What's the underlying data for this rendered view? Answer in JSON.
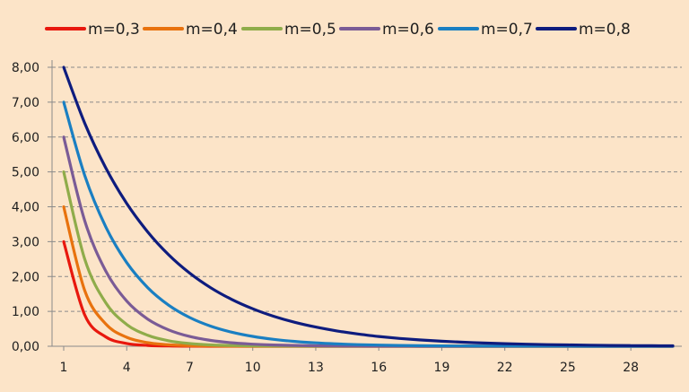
{
  "chart_data": {
    "type": "line",
    "title": "",
    "xlabel": "",
    "ylabel": "",
    "x": [
      1,
      2,
      3,
      4,
      5,
      6,
      7,
      8,
      9,
      10,
      11,
      12,
      13,
      14,
      15,
      16,
      17,
      18,
      19,
      20,
      21,
      22,
      23,
      24,
      25,
      26,
      27,
      28,
      29,
      30
    ],
    "x_tick_labels": [
      "1",
      "4",
      "7",
      "10",
      "13",
      "16",
      "19",
      "22",
      "25",
      "28"
    ],
    "y_tick_labels": [
      "0,00",
      "1,00",
      "2,00",
      "3,00",
      "4,00",
      "5,00",
      "6,00",
      "7,00",
      "8,00"
    ],
    "ylim": [
      0,
      8
    ],
    "xlim": [
      1,
      30
    ],
    "grid": "horizontal-dashed",
    "legend_position": "top",
    "series": [
      {
        "name": "m=0,3",
        "color": "#e8180e",
        "values": [
          3.0,
          0.9,
          0.27,
          0.081,
          0.024,
          0.0073,
          0.0022,
          0.00066,
          0.0002,
          6e-05,
          2e-05,
          0.0,
          0.0,
          0.0,
          0.0,
          0.0,
          0.0,
          0.0,
          0.0,
          0.0,
          0.0,
          0.0,
          0.0,
          0.0,
          0.0,
          0.0,
          0.0,
          0.0,
          0.0,
          0.0
        ]
      },
      {
        "name": "m=0,4",
        "color": "#e8720e",
        "values": [
          4.0,
          1.6,
          0.64,
          0.256,
          0.102,
          0.041,
          0.016,
          0.0066,
          0.0026,
          0.001,
          0.0004,
          0.00017,
          7e-05,
          3e-05,
          1e-05,
          0.0,
          0.0,
          0.0,
          0.0,
          0.0,
          0.0,
          0.0,
          0.0,
          0.0,
          0.0,
          0.0,
          0.0,
          0.0,
          0.0,
          0.0
        ]
      },
      {
        "name": "m=0,5",
        "color": "#8fac4a",
        "values": [
          5.0,
          2.5,
          1.25,
          0.625,
          0.313,
          0.156,
          0.078,
          0.039,
          0.0195,
          0.0098,
          0.0049,
          0.0024,
          0.0012,
          0.0006,
          0.0003,
          0.00015,
          8e-05,
          4e-05,
          2e-05,
          1e-05,
          0.0,
          0.0,
          0.0,
          0.0,
          0.0,
          0.0,
          0.0,
          0.0,
          0.0,
          0.0
        ]
      },
      {
        "name": "m=0,6",
        "color": "#7a5b96",
        "values": [
          6.0,
          3.6,
          2.16,
          1.296,
          0.778,
          0.467,
          0.28,
          0.168,
          0.101,
          0.06,
          0.036,
          0.022,
          0.013,
          0.0078,
          0.0047,
          0.0028,
          0.0017,
          0.001,
          0.0006,
          0.00037,
          0.00022,
          0.00013,
          8e-05,
          5e-05,
          3e-05,
          2e-05,
          1e-05,
          0.0,
          0.0,
          0.0
        ]
      },
      {
        "name": "m=0,7",
        "color": "#1a7fc2",
        "values": [
          7.0,
          4.9,
          3.43,
          2.401,
          1.681,
          1.176,
          0.824,
          0.576,
          0.404,
          0.282,
          0.198,
          0.138,
          0.097,
          0.068,
          0.047,
          0.033,
          0.023,
          0.016,
          0.011,
          0.008,
          0.0056,
          0.0039,
          0.0027,
          0.0019,
          0.0013,
          0.0009,
          0.00066,
          0.00046,
          0.00032,
          0.00023
        ]
      },
      {
        "name": "m=0,8",
        "color": "#0e1c7e",
        "values": [
          8.0,
          6.4,
          5.12,
          4.096,
          3.277,
          2.621,
          2.097,
          1.678,
          1.342,
          1.074,
          0.859,
          0.687,
          0.55,
          0.44,
          0.352,
          0.281,
          0.225,
          0.18,
          0.144,
          0.115,
          0.092,
          0.074,
          0.059,
          0.047,
          0.038,
          0.03,
          0.024,
          0.019,
          0.015,
          0.012
        ]
      }
    ]
  }
}
